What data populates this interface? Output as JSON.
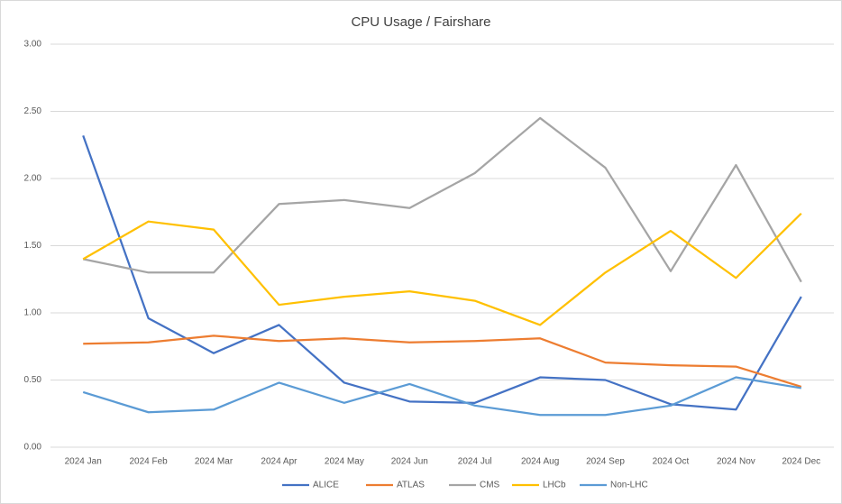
{
  "chart_data": {
    "type": "line",
    "title": "CPU Usage / Fairshare",
    "categories": [
      "2024 Jan",
      "2024 Feb",
      "2024 Mar",
      "2024 Apr",
      "2024 May",
      "2024 Jun",
      "2024 Jul",
      "2024 Aug",
      "2024 Sep",
      "2024 Oct",
      "2024 Nov",
      "2024 Dec"
    ],
    "series": [
      {
        "name": "ALICE",
        "color": "#4472c4",
        "values": [
          2.32,
          0.96,
          0.7,
          0.91,
          0.48,
          0.34,
          0.33,
          0.52,
          0.5,
          0.32,
          0.28,
          1.12
        ]
      },
      {
        "name": "ATLAS",
        "color": "#ed7d31",
        "values": [
          0.77,
          0.78,
          0.83,
          0.79,
          0.81,
          0.78,
          0.79,
          0.81,
          0.63,
          0.61,
          0.6,
          0.45
        ]
      },
      {
        "name": "CMS",
        "color": "#a5a5a5",
        "values": [
          1.4,
          1.3,
          1.3,
          1.81,
          1.84,
          1.78,
          2.04,
          2.45,
          2.08,
          1.31,
          2.1,
          1.23
        ]
      },
      {
        "name": "LHCb",
        "color": "#ffc000",
        "values": [
          1.4,
          1.68,
          1.62,
          1.06,
          1.12,
          1.16,
          1.09,
          0.91,
          1.3,
          1.61,
          1.26,
          1.74
        ]
      },
      {
        "name": "Non-LHC",
        "color": "#5b9bd5",
        "values": [
          0.41,
          0.26,
          0.28,
          0.48,
          0.33,
          0.47,
          0.31,
          0.24,
          0.24,
          0.31,
          0.52,
          0.44
        ]
      }
    ],
    "ylim": [
      0,
      3
    ],
    "yticks": [
      {
        "value": 0,
        "label": "0.00"
      },
      {
        "value": 0.5,
        "label": "0.50"
      },
      {
        "value": 1,
        "label": "1.00"
      },
      {
        "value": 1.5,
        "label": "1.50"
      },
      {
        "value": 2,
        "label": "2.00"
      },
      {
        "value": 2.5,
        "label": "2.50"
      },
      {
        "value": 3,
        "label": "3.00"
      }
    ],
    "grid": true,
    "legend": "bottom"
  }
}
